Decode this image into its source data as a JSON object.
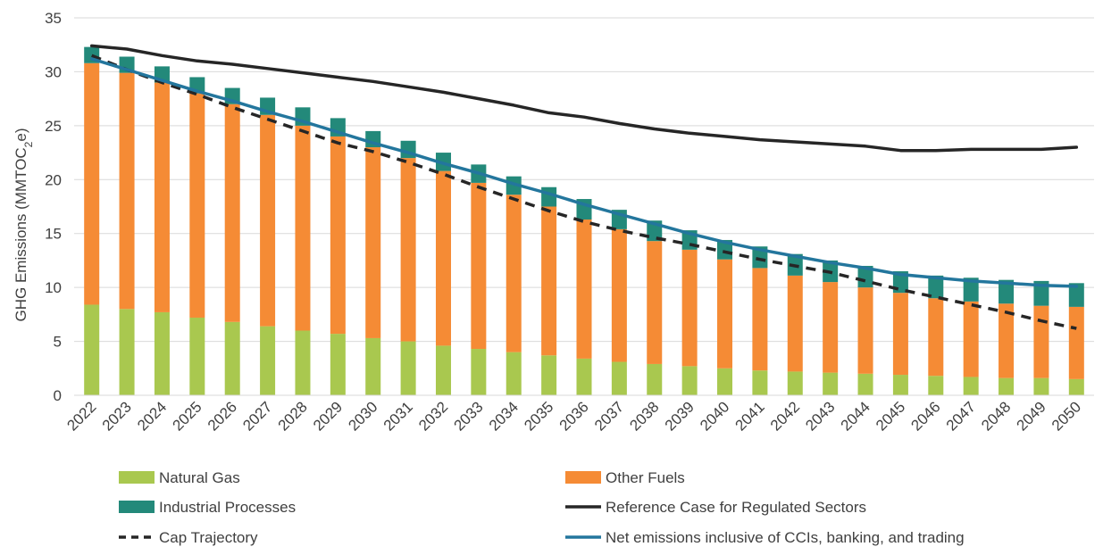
{
  "chart_data": {
    "type": "bar",
    "stacked": true,
    "ylabel": "GHG Emissions (MMTOC",
    "ylabel_subscript": "2",
    "ylabel_suffix": "e)",
    "ylim": [
      0,
      35
    ],
    "yticks": [
      0,
      5,
      10,
      15,
      20,
      25,
      30,
      35
    ],
    "grid": true,
    "legend_position": "bottom",
    "categories": [
      "2022",
      "2023",
      "2024",
      "2025",
      "2026",
      "2027",
      "2028",
      "2029",
      "2030",
      "2031",
      "2032",
      "2033",
      "2034",
      "2035",
      "2036",
      "2037",
      "2038",
      "2039",
      "2040",
      "2041",
      "2042",
      "2043",
      "2044",
      "2045",
      "2046",
      "2047",
      "2048",
      "2049",
      "2050"
    ],
    "bar_series": [
      {
        "name": "Natural Gas",
        "color": "#a9c84f",
        "values": [
          8.4,
          8.0,
          7.7,
          7.2,
          6.8,
          6.4,
          6.0,
          5.7,
          5.3,
          5.0,
          4.6,
          4.3,
          4.0,
          3.7,
          3.4,
          3.1,
          2.9,
          2.7,
          2.5,
          2.3,
          2.2,
          2.1,
          2.0,
          1.9,
          1.8,
          1.7,
          1.6,
          1.6,
          1.5
        ]
      },
      {
        "name": "Other Fuels",
        "color": "#f58b35",
        "values": [
          22.4,
          21.9,
          21.3,
          20.8,
          20.2,
          19.6,
          19.0,
          18.3,
          17.7,
          17.0,
          16.2,
          15.4,
          14.6,
          13.8,
          12.9,
          12.3,
          11.4,
          10.8,
          10.1,
          9.5,
          8.9,
          8.4,
          8.0,
          7.6,
          7.2,
          7.0,
          6.9,
          6.7,
          6.7
        ]
      },
      {
        "name": "Industrial Processes",
        "color": "#23897a",
        "values": [
          1.5,
          1.5,
          1.5,
          1.5,
          1.5,
          1.6,
          1.7,
          1.7,
          1.5,
          1.6,
          1.7,
          1.7,
          1.7,
          1.8,
          1.9,
          1.8,
          1.9,
          1.8,
          1.8,
          2.0,
          2.0,
          2.0,
          2.0,
          2.0,
          2.1,
          2.2,
          2.2,
          2.3,
          2.2
        ]
      }
    ],
    "line_series": [
      {
        "name": "Reference Case for Regulated Sectors",
        "color": "#262626",
        "dash": "solid",
        "values": [
          32.4,
          32.1,
          31.5,
          31.0,
          30.7,
          30.3,
          29.9,
          29.5,
          29.1,
          28.6,
          28.1,
          27.5,
          26.9,
          26.2,
          25.8,
          25.2,
          24.7,
          24.3,
          24.0,
          23.7,
          23.5,
          23.3,
          23.1,
          22.7,
          22.7,
          22.8,
          22.8,
          22.8,
          23.0
        ]
      },
      {
        "name": "Cap Trajectory",
        "color": "#262626",
        "dash": "dashed",
        "values": [
          31.5,
          30.2,
          29.0,
          27.9,
          26.7,
          25.6,
          24.5,
          23.4,
          22.6,
          21.6,
          20.5,
          19.3,
          18.2,
          17.1,
          16.1,
          15.3,
          14.6,
          14.0,
          13.3,
          12.6,
          12.0,
          11.4,
          10.6,
          9.8,
          9.1,
          8.4,
          7.7,
          6.9,
          6.2
        ]
      },
      {
        "name": "Net emissions inclusive of CCIs, banking, and trading",
        "color": "#23769d",
        "dash": "solid",
        "values": [
          31.2,
          30.2,
          29.2,
          28.2,
          27.3,
          26.3,
          25.4,
          24.4,
          23.4,
          22.5,
          21.5,
          20.6,
          19.6,
          18.7,
          17.7,
          16.8,
          15.9,
          15.0,
          14.2,
          13.5,
          12.9,
          12.3,
          11.8,
          11.2,
          10.9,
          10.6,
          10.4,
          10.2,
          10.1
        ]
      }
    ],
    "legend": [
      {
        "label": "Natural Gas",
        "kind": "bar",
        "color": "#a9c84f"
      },
      {
        "label": "Other Fuels",
        "kind": "bar",
        "color": "#f58b35"
      },
      {
        "label": "Industrial Processes",
        "kind": "bar",
        "color": "#23897a"
      },
      {
        "label": "Reference Case for Regulated Sectors",
        "kind": "line",
        "color": "#262626",
        "dash": "solid"
      },
      {
        "label": "Cap Trajectory",
        "kind": "line",
        "color": "#262626",
        "dash": "dashed"
      },
      {
        "label": "Net emissions inclusive of CCIs, banking, and trading",
        "kind": "line",
        "color": "#23769d",
        "dash": "solid"
      }
    ]
  }
}
